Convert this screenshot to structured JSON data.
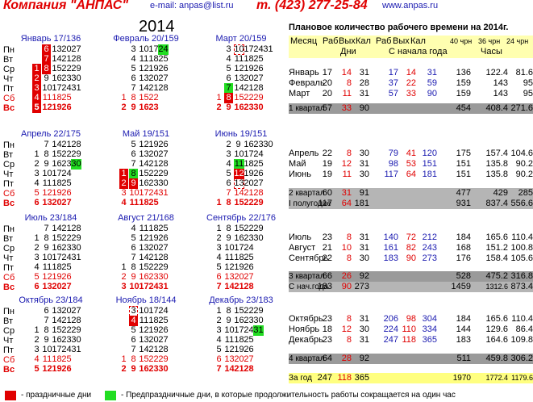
{
  "header": {
    "company": "Компания \"АНПАС\"",
    "email": "e-mail: anpas@list.ru",
    "phone": "т. (423) 277-25-84",
    "site": "www.anpas.ru",
    "year": "2014",
    "table_title": "Плановое количество рабочего времени на 2014г."
  },
  "day_names": [
    "Пн",
    "Вт",
    "Ср",
    "Чт",
    "Пт",
    "Сб",
    "Вс"
  ],
  "months": [
    {
      "title": "Январь 17/136",
      "offset": 2,
      "days": 31,
      "hol": [
        1,
        2,
        3,
        4,
        5,
        6,
        7,
        8
      ],
      "pre": [],
      "box": []
    },
    {
      "title": "Февраль 20/159",
      "offset": 5,
      "days": 28,
      "hol": [],
      "pre": [
        24
      ],
      "box": []
    },
    {
      "title": "Март 20/159",
      "offset": 5,
      "days": 31,
      "hol": [
        8
      ],
      "pre": [
        7
      ],
      "box": [
        10
      ]
    },
    {
      "title": "Апрель 22/175",
      "offset": 1,
      "days": 30,
      "hol": [],
      "pre": [
        30
      ],
      "box": []
    },
    {
      "title": "Май 19/151",
      "offset": 3,
      "days": 31,
      "hol": [
        1,
        2,
        9
      ],
      "pre": [
        8
      ],
      "box": [
        2
      ]
    },
    {
      "title": "Июнь 19/151",
      "offset": 6,
      "days": 30,
      "hol": [
        12
      ],
      "pre": [
        11
      ],
      "box": [
        13
      ]
    },
    {
      "title": "Июль 23/184",
      "offset": 1,
      "days": 31,
      "hol": [],
      "pre": [],
      "box": []
    },
    {
      "title": "Август 21/168",
      "offset": 4,
      "days": 31,
      "hol": [],
      "pre": [],
      "box": []
    },
    {
      "title": "Сентябрь 22/176",
      "offset": 0,
      "days": 30,
      "hol": [],
      "pre": [],
      "box": []
    },
    {
      "title": "Октябрь 23/184",
      "offset": 2,
      "days": 31,
      "hol": [],
      "pre": [],
      "box": []
    },
    {
      "title": "Ноябрь 18/144",
      "offset": 5,
      "days": 30,
      "hol": [
        4
      ],
      "pre": [],
      "box": [
        3
      ]
    },
    {
      "title": "Декабрь 23/183",
      "offset": 0,
      "days": 31,
      "hol": [],
      "pre": [
        31
      ],
      "box": []
    }
  ],
  "table_header": {
    "month": "Месяц",
    "r1": "Раб",
    "v1": "Вых",
    "k1": "Кал",
    "r2": "Раб",
    "v2": "Вых",
    "k2": "Кал",
    "h40": "40 чрн",
    "h36": "36 чрн",
    "h24": "24 чрн",
    "days_lbl": "Дни",
    "ytd_lbl": "С начала года",
    "hours_lbl": "Часы"
  },
  "table_rows": [
    {
      "label": "Январь",
      "r": "17",
      "v": "14",
      "k": "31",
      "cr": "17",
      "cv": "14",
      "ck": "31",
      "h40": "136",
      "h36": "122.4",
      "h24": "81.6"
    },
    {
      "label": "Февраль",
      "r": "20",
      "v": "8",
      "k": "28",
      "cr": "37",
      "cv": "22",
      "ck": "59",
      "h40": "159",
      "h36": "143",
      "h24": "95"
    },
    {
      "label": "Март",
      "r": "20",
      "v": "11",
      "k": "31",
      "cr": "57",
      "cv": "33",
      "ck": "90",
      "h40": "159",
      "h36": "143",
      "h24": "95"
    },
    {
      "label": "1 квартал",
      "r": "57",
      "v": "33",
      "k": "90",
      "cr": "",
      "cv": "",
      "ck": "",
      "h40": "454",
      "h36": "408.4",
      "h24": "271.6"
    },
    {
      "label": "Апрель",
      "r": "22",
      "v": "8",
      "k": "30",
      "cr": "79",
      "cv": "41",
      "ck": "120",
      "h40": "175",
      "h36": "157.4",
      "h24": "104.6"
    },
    {
      "label": "Май",
      "r": "19",
      "v": "12",
      "k": "31",
      "cr": "98",
      "cv": "53",
      "ck": "151",
      "h40": "151",
      "h36": "135.8",
      "h24": "90.2"
    },
    {
      "label": "Июнь",
      "r": "19",
      "v": "11",
      "k": "30",
      "cr": "117",
      "cv": "64",
      "ck": "181",
      "h40": "151",
      "h36": "135.8",
      "h24": "90.2"
    },
    {
      "label": "2 квартал",
      "r": "60",
      "v": "31",
      "k": "91",
      "cr": "",
      "cv": "",
      "ck": "",
      "h40": "477",
      "h36": "429",
      "h24": "285"
    },
    {
      "label": "I полугодие",
      "r": "117",
      "v": "64",
      "k": "181",
      "cr": "",
      "cv": "",
      "ck": "",
      "h40": "931",
      "h36": "837.4",
      "h24": "556.6"
    },
    {
      "label": "Июль",
      "r": "23",
      "v": "8",
      "k": "31",
      "cr": "140",
      "cv": "72",
      "ck": "212",
      "h40": "184",
      "h36": "165.6",
      "h24": "110.4"
    },
    {
      "label": "Август",
      "r": "21",
      "v": "10",
      "k": "31",
      "cr": "161",
      "cv": "82",
      "ck": "243",
      "h40": "168",
      "h36": "151.2",
      "h24": "100.8"
    },
    {
      "label": "Сентябрь",
      "r": "22",
      "v": "8",
      "k": "30",
      "cr": "183",
      "cv": "90",
      "ck": "273",
      "h40": "176",
      "h36": "158.4",
      "h24": "105.6"
    },
    {
      "label": "3 квартал",
      "r": "66",
      "v": "26",
      "k": "92",
      "cr": "",
      "cv": "",
      "ck": "",
      "h40": "528",
      "h36": "475.2",
      "h24": "316.8"
    },
    {
      "label": "С нач.года",
      "r": "183",
      "v": "90",
      "k": "273",
      "cr": "",
      "cv": "",
      "ck": "",
      "h40": "1459",
      "h36": "1312.6",
      "h24": "873.4"
    },
    {
      "label": "Октябрь",
      "r": "23",
      "v": "8",
      "k": "31",
      "cr": "206",
      "cv": "98",
      "ck": "304",
      "h40": "184",
      "h36": "165.6",
      "h24": "110.4"
    },
    {
      "label": "Ноябрь",
      "r": "18",
      "v": "12",
      "k": "30",
      "cr": "224",
      "cv": "110",
      "ck": "334",
      "h40": "144",
      "h36": "129.6",
      "h24": "86.4"
    },
    {
      "label": "Декабрь",
      "r": "23",
      "v": "8",
      "k": "31",
      "cr": "247",
      "cv": "118",
      "ck": "365",
      "h40": "183",
      "h36": "164.6",
      "h24": "109.8"
    },
    {
      "label": "4 квартал",
      "r": "64",
      "v": "28",
      "k": "92",
      "cr": "",
      "cv": "",
      "ck": "",
      "h40": "511",
      "h36": "459.8",
      "h24": "306.2"
    },
    {
      "label": "За год",
      "r": "247",
      "v": "118",
      "k": "365",
      "cr": "",
      "cv": "",
      "ck": "",
      "h40": "1970",
      "h36": "1772.4",
      "h24": "1179.6"
    }
  ],
  "legend": {
    "holiday": "- праздничные дни",
    "preholiday": "- Предпраздничные дни, в которые продолжительность работы сокращается на один час"
  },
  "colors": {
    "holiday": "#e00000",
    "preholiday": "#22dd22",
    "title": "#1a1ab0"
  }
}
